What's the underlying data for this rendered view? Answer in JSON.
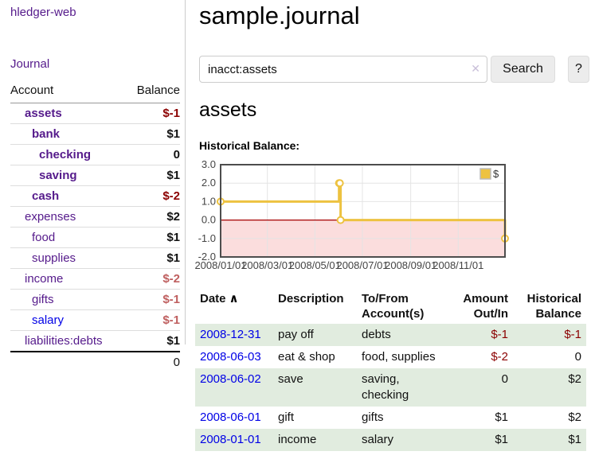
{
  "app": {
    "brand": "hledger-web",
    "nav": {
      "journal": "Journal"
    }
  },
  "sidebar": {
    "headers": [
      "Account",
      "Balance"
    ],
    "accounts": [
      {
        "name": "assets",
        "indent": 1,
        "bold": true,
        "balance": "$-1",
        "tone": "neg",
        "link": "purple"
      },
      {
        "name": "bank",
        "indent": 2,
        "bold": true,
        "balance": "$1",
        "tone": "pos",
        "link": "purple"
      },
      {
        "name": "checking",
        "indent": 3,
        "bold": true,
        "balance": "0",
        "tone": "pos",
        "link": "purple"
      },
      {
        "name": "saving",
        "indent": 3,
        "bold": true,
        "balance": "$1",
        "tone": "pos",
        "link": "purple"
      },
      {
        "name": "cash",
        "indent": 2,
        "bold": true,
        "balance": "$-2",
        "tone": "neg",
        "link": "purple"
      },
      {
        "name": "expenses",
        "indent": 1,
        "bold": false,
        "balance": "$2",
        "tone": "pos",
        "link": "purple"
      },
      {
        "name": "food",
        "indent": 2,
        "bold": false,
        "balance": "$1",
        "tone": "pos",
        "link": "purple"
      },
      {
        "name": "supplies",
        "indent": 2,
        "bold": false,
        "balance": "$1",
        "tone": "pos",
        "link": "purple"
      },
      {
        "name": "income",
        "indent": 1,
        "bold": false,
        "balance": "$-2",
        "tone": "neg-soft",
        "link": "purple"
      },
      {
        "name": "gifts",
        "indent": 2,
        "bold": false,
        "balance": "$-1",
        "tone": "neg-soft",
        "link": "purple"
      },
      {
        "name": "salary",
        "indent": 2,
        "bold": false,
        "balance": "$-1",
        "tone": "neg-soft",
        "link": "blue"
      },
      {
        "name": "liabilities:debts",
        "indent": 1,
        "bold": false,
        "balance": "$1",
        "tone": "pos",
        "link": "purple"
      }
    ],
    "total": "0"
  },
  "main": {
    "title": "sample.journal",
    "search": {
      "value": "inacct:assets",
      "clear_icon": "✕",
      "button": "Search",
      "help": "?"
    },
    "account_heading": "assets"
  },
  "register": {
    "headers": {
      "date": "Date",
      "sort_icon": "∧",
      "description": "Description",
      "account_line1": "To/From",
      "account_line2": "Account(s)",
      "amount_line1": "Amount",
      "amount_line2": "Out/In",
      "balance_line1": "Historical",
      "balance_line2": "Balance"
    },
    "rows": [
      {
        "date": "2008-12-31",
        "description": "pay off",
        "accounts": "debts",
        "amount": "$-1",
        "amount_neg": true,
        "balance": "$-1",
        "balance_neg": true,
        "green": true
      },
      {
        "date": "2008-06-03",
        "description": "eat & shop",
        "accounts": "food, supplies",
        "amount": "$-2",
        "amount_neg": true,
        "balance": "0",
        "balance_neg": false,
        "green": false
      },
      {
        "date": "2008-06-02",
        "description": "save",
        "accounts": "saving, checking",
        "amount": "0",
        "amount_neg": false,
        "balance": "$2",
        "balance_neg": false,
        "green": true
      },
      {
        "date": "2008-06-01",
        "description": "gift",
        "accounts": "gifts",
        "amount": "$1",
        "amount_neg": false,
        "balance": "$2",
        "balance_neg": false,
        "green": false
      },
      {
        "date": "2008-01-01",
        "description": "income",
        "accounts": "salary",
        "amount": "$1",
        "amount_neg": false,
        "balance": "$1",
        "balance_neg": false,
        "green": true
      }
    ]
  },
  "chart_data": {
    "type": "line",
    "title": "Historical Balance:",
    "step": true,
    "x_range": [
      "2008-01-01",
      "2008-12-31"
    ],
    "ylim": [
      -2,
      3
    ],
    "yticks": [
      3,
      2,
      1,
      0,
      -1,
      -2
    ],
    "xticks": [
      "2008/01/01",
      "2008/03/01",
      "2008/05/01",
      "2008/07/01",
      "2008/09/01",
      "2008/11/01"
    ],
    "series": [
      {
        "name": "$",
        "color": "#edc240",
        "points": [
          [
            "2008-01-01",
            1
          ],
          [
            "2008-06-01",
            2
          ],
          [
            "2008-06-02",
            2
          ],
          [
            "2008-06-03",
            0
          ],
          [
            "2008-12-31",
            -1
          ]
        ]
      }
    ],
    "legend_position": "top-right",
    "grid": true,
    "colors": {
      "negative_region": "#fbdddd",
      "zero_line": "#a60000",
      "grid": "#e4e4e4",
      "border": "#4d4d4d",
      "tick_text": "#444444",
      "marker_fill": "#ffffff",
      "legend_swatch_border": "#bbbbbb"
    }
  }
}
